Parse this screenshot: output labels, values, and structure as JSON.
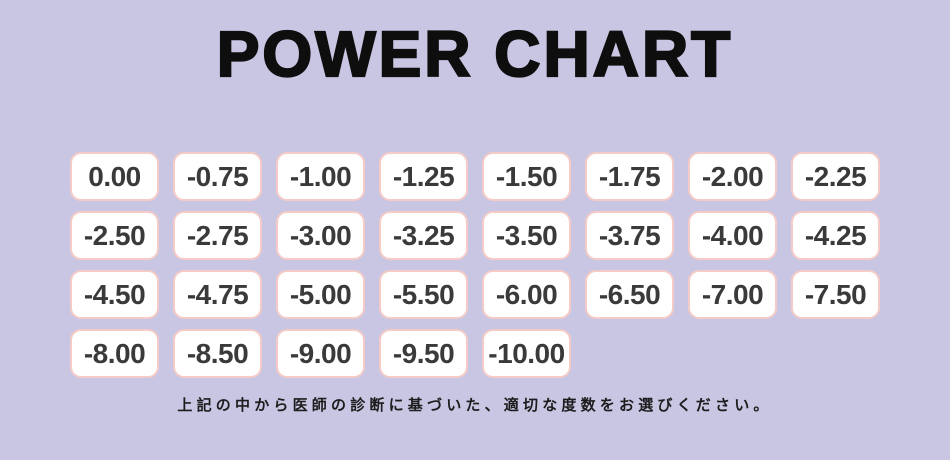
{
  "header": {
    "title": "POWER CHART"
  },
  "grid": {
    "columns": 8,
    "power_values": [
      "0.00",
      "-0.75",
      "-1.00",
      "-1.25",
      "-1.50",
      "-1.75",
      "-2.00",
      "-2.25",
      "-2.50",
      "-2.75",
      "-3.00",
      "-3.25",
      "-3.50",
      "-3.75",
      "-4.00",
      "-4.25",
      "-4.50",
      "-4.75",
      "-5.00",
      "-5.50",
      "-6.00",
      "-6.50",
      "-7.00",
      "-7.50",
      "-8.00",
      "-8.50",
      "-9.00",
      "-9.50",
      "-10.00"
    ]
  },
  "footer": {
    "caption": "上記の中から医師の診断に基づいた、適切な度数をお選びください。"
  },
  "colors": {
    "background": "#c8c6e3",
    "cell_background": "#ffffff",
    "cell_border": "#f4cbc7",
    "cell_text": "#3a3a3a",
    "title_text": "#0e0e0e",
    "caption_text": "#1c1c1c"
  }
}
